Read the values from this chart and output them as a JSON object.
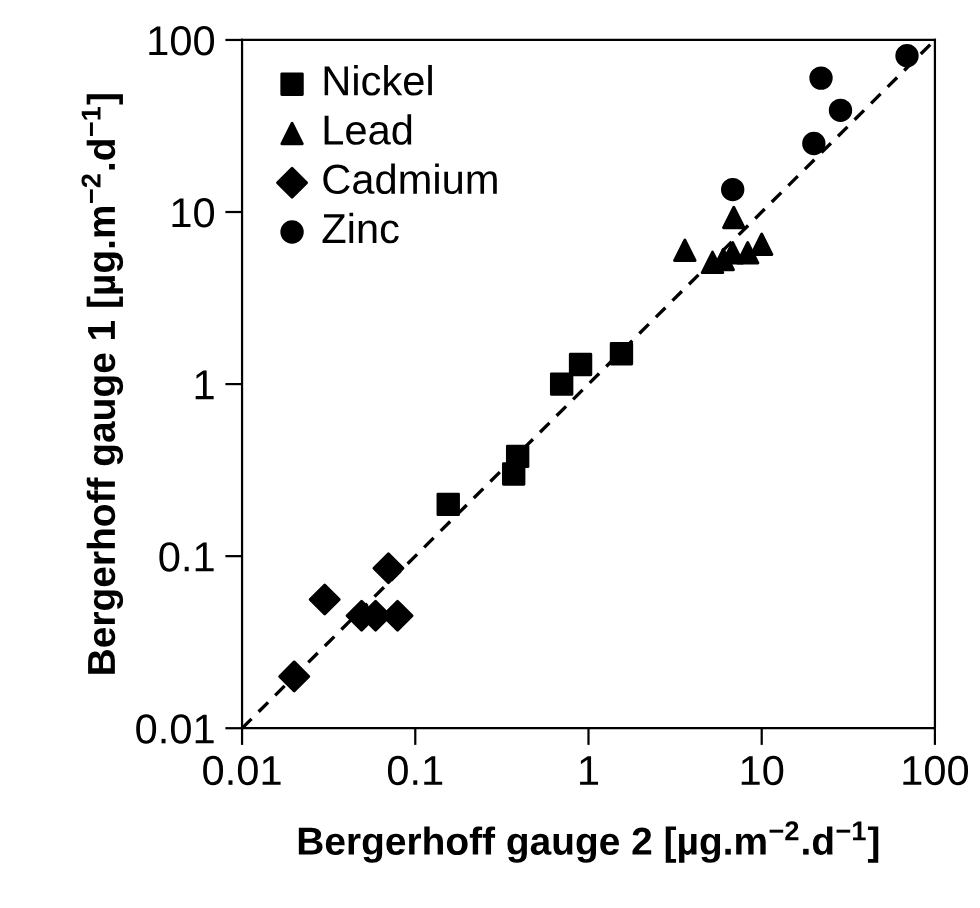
{
  "chart_data": {
    "type": "scatter",
    "xlabel": "Bergerhoff gauge 2 [µg.m$^{−2}$.d$^{−1}$]",
    "ylabel": "Bergerhoff gauge 1 [µg.m$^{−2}$.d$^{−1}$]",
    "log": "xy",
    "grid": false,
    "legend": "top left",
    "xlim": [
      0.01,
      100
    ],
    "ylim": [
      0.01,
      100
    ],
    "xticks": [
      0.01,
      0.1,
      1,
      10,
      100
    ],
    "yticks": [
      0.01,
      0.1,
      1,
      10,
      100
    ],
    "series": [
      {
        "name": "Nickel",
        "color": "#000000",
        "marker": "square",
        "x": [
          0.155,
          0.37,
          0.39,
          0.7,
          0.9,
          1.55
        ],
        "values": [
          0.2,
          0.3,
          0.38,
          1.0,
          1.3,
          1.5
        ]
      },
      {
        "name": "Lead",
        "color": "#000000",
        "marker": "triangle",
        "x": [
          3.6,
          5.2,
          6.0,
          6.8,
          8.3,
          10,
          6.9
        ],
        "values": [
          6.0,
          5.1,
          5.3,
          5.8,
          5.8,
          6.5,
          9.3
        ]
      },
      {
        "name": "Cadmium",
        "color": "#000000",
        "marker": "diamond",
        "x": [
          0.02,
          0.03,
          0.049,
          0.059,
          0.079,
          0.07
        ],
        "values": [
          0.02,
          0.056,
          0.045,
          0.045,
          0.045,
          0.085
        ]
      },
      {
        "name": "Zinc",
        "color": "#000000",
        "marker": "circle",
        "x": [
          6.8,
          20,
          22,
          28.5,
          69
        ],
        "values": [
          13.5,
          25,
          60,
          39,
          81
        ]
      },
      {
        "type": "line",
        "color": "#000000",
        "line_style": "dashed",
        "marker": "none",
        "x": [
          0.01,
          100
        ],
        "values": [
          0.01,
          100
        ]
      }
    ]
  }
}
